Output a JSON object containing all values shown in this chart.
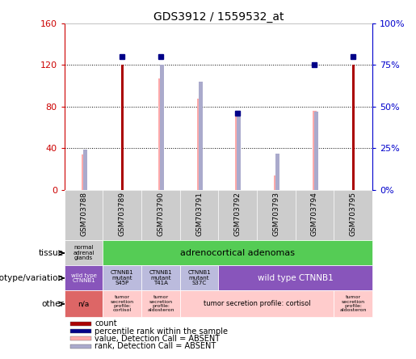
{
  "title": "GDS3912 / 1559532_at",
  "samples": [
    "GSM703788",
    "GSM703789",
    "GSM703790",
    "GSM703791",
    "GSM703792",
    "GSM703793",
    "GSM703794",
    "GSM703795"
  ],
  "count_values": [
    0,
    120,
    0,
    0,
    0,
    0,
    0,
    120
  ],
  "percentile_values": [
    0,
    80,
    80,
    0,
    46,
    0,
    75,
    80
  ],
  "value_absent": [
    34,
    0,
    107,
    88,
    75,
    14,
    76,
    0
  ],
  "rank_absent": [
    24,
    0,
    75,
    65,
    44,
    22,
    47,
    0
  ],
  "ylim_left": [
    0,
    160
  ],
  "ylim_right": [
    0,
    100
  ],
  "yticks_left": [
    0,
    40,
    80,
    120,
    160
  ],
  "yticks_right": [
    0,
    25,
    50,
    75,
    100
  ],
  "bar_color_count": "#aa0000",
  "bar_color_percentile": "#000088",
  "bar_color_value_absent": "#ffaaaa",
  "bar_color_rank_absent": "#aaaacc",
  "left_label_color": "#cc0000",
  "right_label_color": "#0000cc",
  "bg_color": "#ffffff",
  "xlab_bg": "#cccccc",
  "tissue_col0_color": "#cccccc",
  "tissue_col1_color": "#55cc55",
  "geno_col0_color": "#8855bb",
  "geno_col13_color": "#bbbbdd",
  "geno_col47_color": "#8855bb",
  "other_col0_color": "#dd6666",
  "other_col_pink": "#ffcccc",
  "legend_items": [
    {
      "label": "count",
      "color": "#aa0000"
    },
    {
      "label": "percentile rank within the sample",
      "color": "#000088"
    },
    {
      "label": "value, Detection Call = ABSENT",
      "color": "#ffaaaa"
    },
    {
      "label": "rank, Detection Call = ABSENT",
      "color": "#aaaacc"
    }
  ]
}
